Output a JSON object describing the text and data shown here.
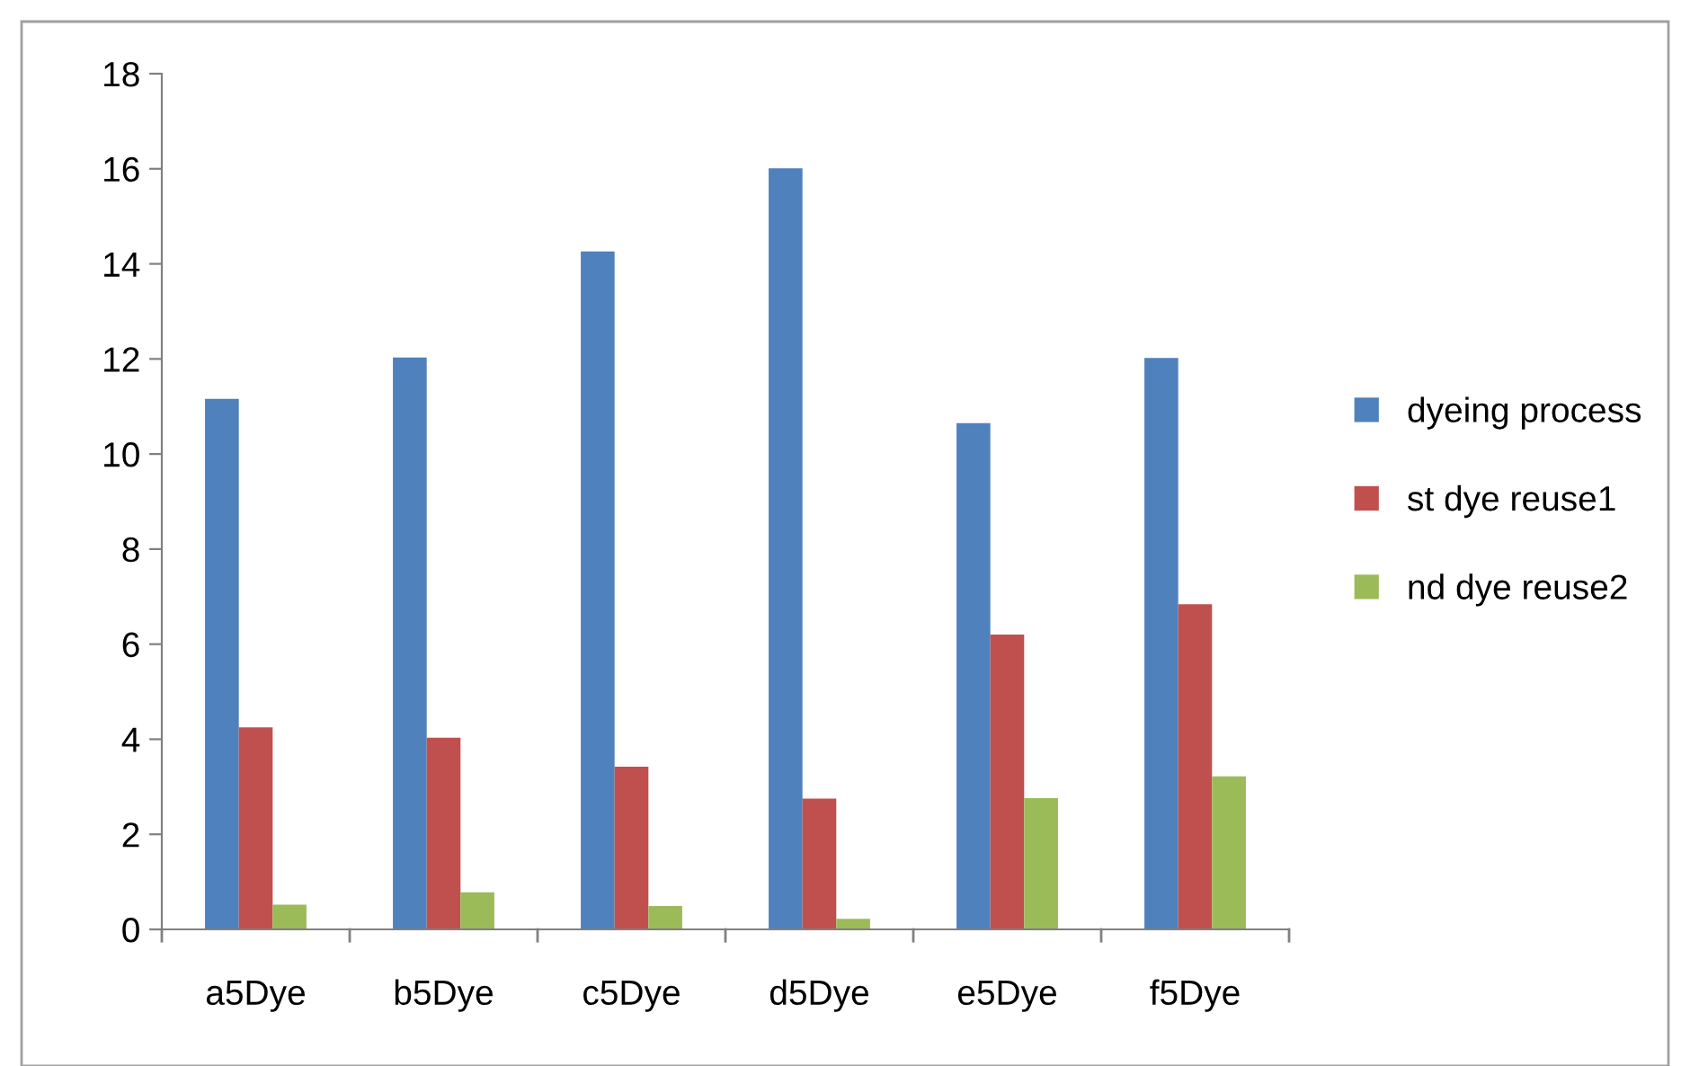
{
  "chart_data": {
    "type": "bar",
    "categories": [
      "a5Dye",
      "b5Dye",
      "c5Dye",
      "d5Dye",
      "e5Dye",
      "f5Dye"
    ],
    "series": [
      {
        "name": "dyeing process",
        "color": "#4f81bd",
        "values": [
          11.16,
          12.03,
          14.26,
          16.01,
          10.65,
          12.02
        ]
      },
      {
        "name": "st dye reuse1",
        "color": "#c0504d",
        "values": [
          4.25,
          4.03,
          3.42,
          2.75,
          6.2,
          6.84
        ]
      },
      {
        "name": "nd dye reuse2",
        "color": "#9bbb59",
        "values": [
          0.52,
          0.78,
          0.49,
          0.22,
          2.76,
          3.22
        ]
      }
    ],
    "ylim": [
      0,
      18
    ],
    "yticks": [
      0,
      2,
      4,
      6,
      8,
      10,
      12,
      14,
      16,
      18
    ],
    "grid": false,
    "legend": "right"
  }
}
